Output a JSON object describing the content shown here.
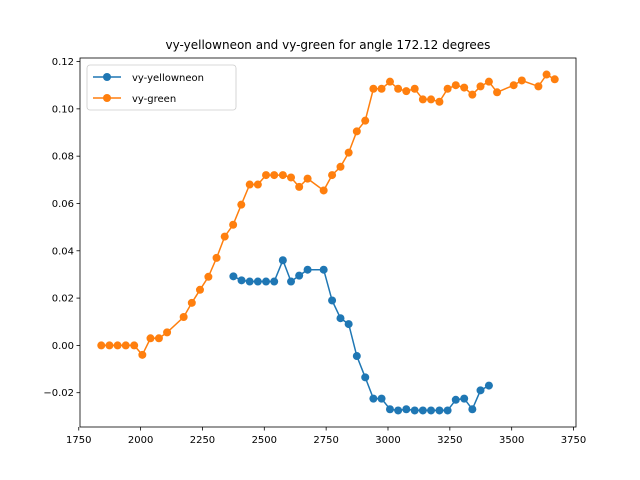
{
  "chart_data": {
    "type": "line",
    "title": "vy-yellowneon and vy-green for angle 172.12 degrees",
    "xlabel": "",
    "ylabel": "",
    "xlim": [
      1755,
      3760
    ],
    "ylim": [
      -0.0345,
      0.1215
    ],
    "xticks": [
      1750,
      2000,
      2250,
      2500,
      2750,
      3000,
      3250,
      3500,
      3750
    ],
    "yticks": [
      -0.02,
      0.0,
      0.02,
      0.04,
      0.06,
      0.08,
      0.1,
      0.12
    ],
    "ytick_labels": [
      "−0.02",
      "0.00",
      "0.02",
      "0.04",
      "0.06",
      "0.08",
      "0.10",
      "0.12"
    ],
    "grid": false,
    "legend_position": "upper-left",
    "series": [
      {
        "name": "vy-yellowneon",
        "color": "#1f77b4",
        "x": [
          2375,
          2408,
          2441,
          2474,
          2507,
          2540,
          2575,
          2608,
          2641,
          2675,
          2740,
          2774,
          2808,
          2841,
          2874,
          2908,
          2941,
          2974,
          3008,
          3041,
          3074,
          3108,
          3141,
          3174,
          3208,
          3241,
          3274,
          3308,
          3341,
          3374,
          3408
        ],
        "y": [
          0.0292,
          0.0275,
          0.027,
          0.027,
          0.027,
          0.027,
          0.036,
          0.027,
          0.0295,
          0.032,
          0.032,
          0.019,
          0.0115,
          0.009,
          -0.0045,
          -0.0135,
          -0.0225,
          -0.0225,
          -0.027,
          -0.0275,
          -0.027,
          -0.0275,
          -0.0275,
          -0.0275,
          -0.0275,
          -0.0275,
          -0.023,
          -0.0225,
          -0.027,
          -0.019,
          -0.017
        ]
      },
      {
        "name": "vy-green",
        "color": "#ff7f0e",
        "x": [
          1841,
          1874,
          1907,
          1940,
          1974,
          2007,
          2040,
          2074,
          2107,
          2174,
          2207,
          2240,
          2274,
          2307,
          2340,
          2374,
          2407,
          2441,
          2474,
          2507,
          2540,
          2575,
          2608,
          2641,
          2675,
          2740,
          2774,
          2808,
          2841,
          2874,
          2908,
          2941,
          2974,
          3008,
          3041,
          3074,
          3108,
          3141,
          3174,
          3208,
          3241,
          3274,
          3308,
          3341,
          3374,
          3408,
          3441,
          3508,
          3541,
          3608,
          3641,
          3674
        ],
        "y": [
          0.0,
          0.0,
          0.0,
          0.0,
          0.0,
          -0.004,
          0.003,
          0.003,
          0.0055,
          0.012,
          0.018,
          0.0235,
          0.029,
          0.037,
          0.046,
          0.051,
          0.0595,
          0.068,
          0.068,
          0.072,
          0.072,
          0.072,
          0.071,
          0.067,
          0.0705,
          0.0655,
          0.072,
          0.0755,
          0.0815,
          0.0905,
          0.095,
          0.1085,
          0.1085,
          0.1115,
          0.1085,
          0.1075,
          0.1085,
          0.104,
          0.104,
          0.103,
          0.1085,
          0.11,
          0.109,
          0.106,
          0.1095,
          0.1115,
          0.107,
          0.11,
          0.112,
          0.1095,
          0.1145,
          0.1125
        ]
      }
    ]
  }
}
